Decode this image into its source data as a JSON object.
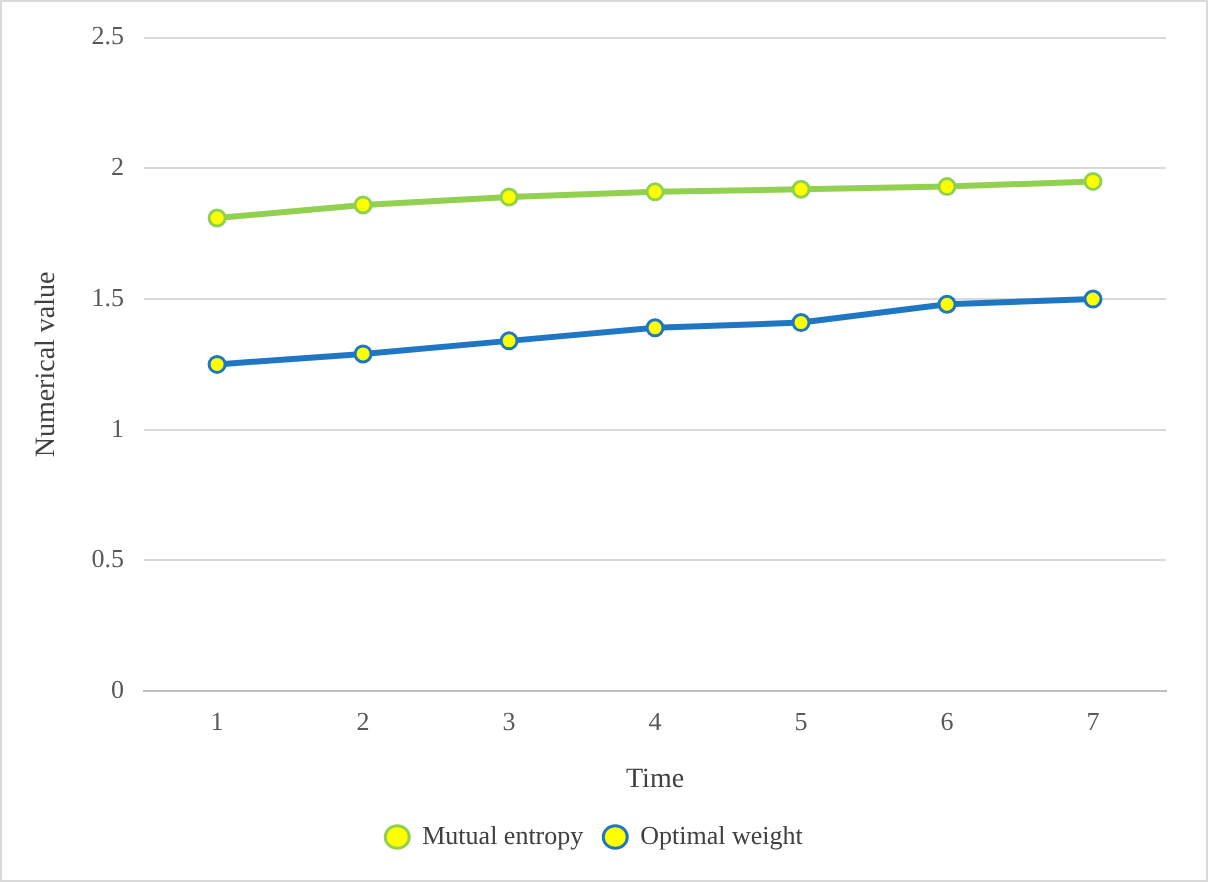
{
  "chart_data": {
    "type": "line",
    "xlabel": "Time",
    "ylabel": "Numerical value",
    "categories": [
      "1",
      "2",
      "3",
      "4",
      "5",
      "6",
      "7"
    ],
    "series": [
      {
        "name": "Mutual entropy",
        "color": "#92d050",
        "values": [
          1.81,
          1.86,
          1.89,
          1.91,
          1.92,
          1.93,
          1.95
        ]
      },
      {
        "name": "Optimal weight",
        "color": "#1f77c4",
        "values": [
          1.25,
          1.29,
          1.34,
          1.39,
          1.41,
          1.48,
          1.5
        ]
      }
    ],
    "ylim": [
      0,
      2.5
    ],
    "yticks": [
      0,
      0.5,
      1,
      1.5,
      2,
      2.5
    ],
    "grid": "y",
    "legend": "bottom",
    "marker": "circle",
    "line_style": "solid"
  }
}
